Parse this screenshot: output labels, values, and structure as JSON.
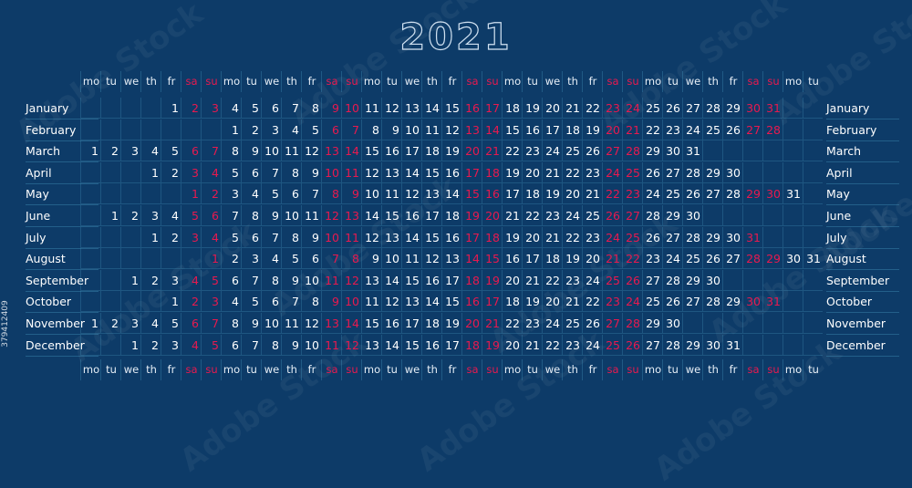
{
  "title": "2021",
  "colors": {
    "background": "#0d3b68",
    "weekend": "#e8194f",
    "text": "#ffffff",
    "grid": "#2f7aa3"
  },
  "weekday_labels": [
    "mo",
    "tu",
    "we",
    "th",
    "fr",
    "sa",
    "su",
    "mo",
    "tu",
    "we",
    "th",
    "fr",
    "sa",
    "su",
    "mo",
    "tu",
    "we",
    "th",
    "fr",
    "sa",
    "su",
    "mo",
    "tu",
    "we",
    "th",
    "fr",
    "sa",
    "su",
    "mo",
    "tu",
    "we",
    "th",
    "fr",
    "sa",
    "su",
    "mo",
    "tu"
  ],
  "months": [
    {
      "name": "January",
      "start_column": 4,
      "days": 31
    },
    {
      "name": "February",
      "start_column": 7,
      "days": 28
    },
    {
      "name": "March",
      "start_column": 0,
      "days": 31
    },
    {
      "name": "April",
      "start_column": 3,
      "days": 30
    },
    {
      "name": "May",
      "start_column": 5,
      "days": 31
    },
    {
      "name": "June",
      "start_column": 1,
      "days": 30
    },
    {
      "name": "July",
      "start_column": 3,
      "days": 31
    },
    {
      "name": "August",
      "start_column": 6,
      "days": 31
    },
    {
      "name": "September",
      "start_column": 2,
      "days": 30
    },
    {
      "name": "October",
      "start_column": 4,
      "days": 31
    },
    {
      "name": "November",
      "start_column": 0,
      "days": 30
    },
    {
      "name": "December",
      "start_column": 2,
      "days": 31
    }
  ],
  "watermark": "Adobe Stock",
  "stock_id": "379412409"
}
